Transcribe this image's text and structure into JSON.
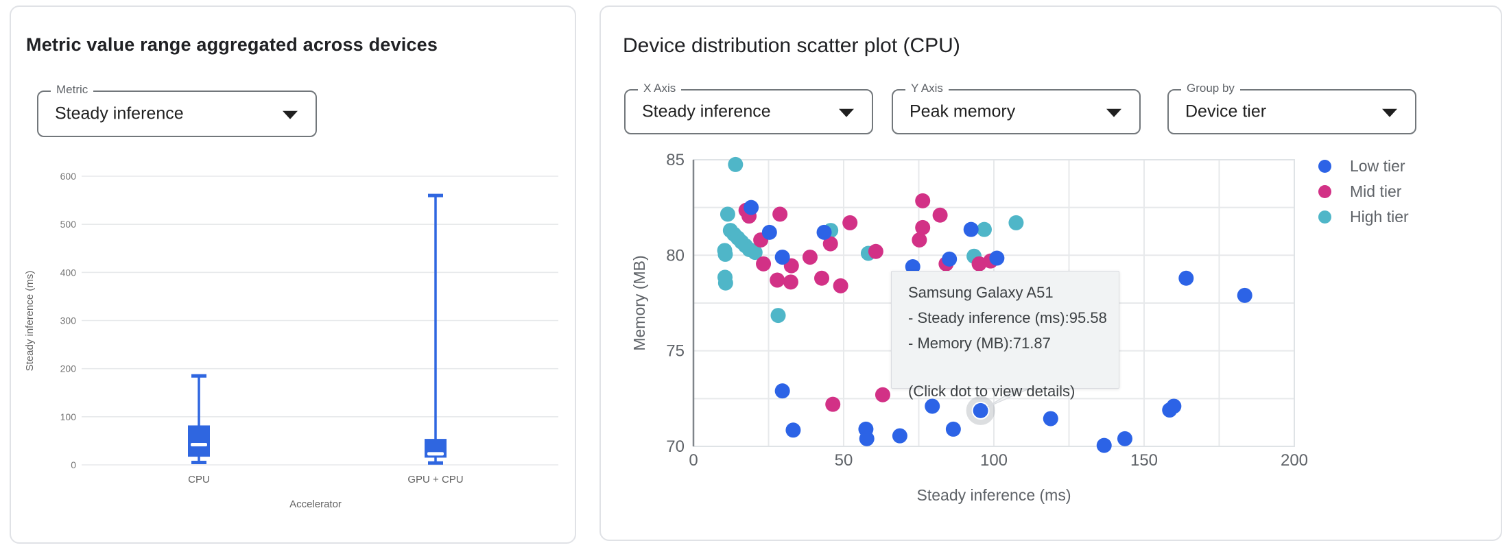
{
  "page": {
    "background": "#ffffff"
  },
  "colors": {
    "low_tier": "#2c63e6",
    "mid_tier": "#d23186",
    "high_tier": "#4fb6c8",
    "box_fill": "#2f66e0",
    "grid_line": "#e7e9eb",
    "axis_line": "#7f8489",
    "axis_text": "#5f6368",
    "small_tick_text": "#757575",
    "title_text": "#202124",
    "tooltip_bg": "#f1f3f4",
    "tooltip_border": "#dadce0"
  },
  "left_panel": {
    "title": "Metric value range aggregated across devices",
    "metric_dropdown": {
      "label": "Metric",
      "value": "Steady inference"
    }
  },
  "right_panel": {
    "title": "Device distribution scatter plot (CPU)",
    "dropdowns": {
      "x_axis": {
        "label": "X Axis",
        "value": "Steady inference"
      },
      "y_axis": {
        "label": "Y Axis",
        "value": "Peak memory"
      },
      "group_by": {
        "label": "Group by",
        "value": "Device tier"
      }
    },
    "legend": [
      {
        "label": "Low tier",
        "color": "#2c63e6"
      },
      {
        "label": "Mid tier",
        "color": "#d23186"
      },
      {
        "label": "High tier",
        "color": "#4fb6c8"
      }
    ],
    "tooltip": {
      "title": "Samsung Galaxy A51",
      "lines": [
        "- Steady inference (ms):95.58",
        "- Memory (MB):71.87"
      ],
      "hint": "(Click dot to view details)"
    }
  },
  "chart_data": [
    {
      "type": "boxplot",
      "title": "",
      "xlabel": "Accelerator",
      "ylabel": "Steady inference (ms)",
      "ylim": [
        0,
        600
      ],
      "yticks": [
        0,
        100,
        200,
        300,
        400,
        500,
        600
      ],
      "grid": "horizontal only",
      "categories": [
        "CPU",
        "GPU + CPU"
      ],
      "series": [
        {
          "category": "CPU",
          "min": 5,
          "q1": 17,
          "median": 42,
          "q3": 82,
          "max": 185
        },
        {
          "category": "GPU + CPU",
          "min": 4,
          "q1": 15,
          "median": 23,
          "q3": 54,
          "max": 560
        }
      ]
    },
    {
      "type": "scatter",
      "title": "",
      "xlabel": "Steady inference (ms)",
      "ylabel": "Memory (MB)",
      "xlim": [
        0,
        200
      ],
      "ylim": [
        70,
        85
      ],
      "xticks": [
        0,
        50,
        100,
        150,
        200
      ],
      "yticks": [
        70,
        75,
        80,
        85
      ],
      "grid": "major and minor (x every 25 ms, y every 2.5 MB)",
      "legend_position": "right",
      "series": [
        {
          "name": "High tier",
          "color": "#4fb6c8",
          "points": [
            [
              14,
              84.75
            ],
            [
              11.4,
              82.15
            ],
            [
              10.4,
              80.25
            ],
            [
              10.6,
              80.05
            ],
            [
              12.3,
              81.3
            ],
            [
              13.5,
              81.1
            ],
            [
              14.8,
              80.9
            ],
            [
              16,
              80.7
            ],
            [
              17.3,
              80.5
            ],
            [
              18.6,
              80.3
            ],
            [
              20.5,
              80.15
            ],
            [
              10.5,
              78.85
            ],
            [
              10.7,
              78.55
            ],
            [
              28.2,
              76.85
            ],
            [
              45.7,
              81.3
            ],
            [
              58.2,
              80.1
            ],
            [
              93.4,
              79.95
            ],
            [
              96.8,
              81.35
            ],
            [
              107.4,
              81.7
            ]
          ]
        },
        {
          "name": "Mid tier",
          "color": "#d23186",
          "points": [
            [
              17.5,
              82.35
            ],
            [
              18.5,
              82.05
            ],
            [
              28.8,
              82.15
            ],
            [
              22.4,
              80.8
            ],
            [
              23.3,
              79.55
            ],
            [
              27.9,
              78.7
            ],
            [
              32.4,
              78.6
            ],
            [
              32.6,
              79.45
            ],
            [
              38.8,
              79.9
            ],
            [
              42.7,
              78.8
            ],
            [
              45.6,
              80.6
            ],
            [
              49,
              78.4
            ],
            [
              52.1,
              81.7
            ],
            [
              60.7,
              80.2
            ],
            [
              75.2,
              80.8
            ],
            [
              76.3,
              82.85
            ],
            [
              76.3,
              81.45
            ],
            [
              82.1,
              82.1
            ],
            [
              84.1,
              79.55
            ],
            [
              95.1,
              79.55
            ],
            [
              98.9,
              79.7
            ],
            [
              46.4,
              72.2
            ],
            [
              63,
              72.7
            ]
          ]
        },
        {
          "name": "Low tier",
          "color": "#2c63e6",
          "points": [
            [
              19.2,
              82.5
            ],
            [
              25.3,
              81.2
            ],
            [
              29.6,
              79.9
            ],
            [
              43.5,
              81.2
            ],
            [
              73,
              79.4
            ],
            [
              85.2,
              79.8
            ],
            [
              92.4,
              81.35
            ],
            [
              101,
              79.85
            ],
            [
              164,
              78.8
            ],
            [
              183.5,
              77.9
            ],
            [
              29.6,
              72.9
            ],
            [
              33.2,
              70.85
            ],
            [
              57.4,
              70.9
            ],
            [
              57.7,
              70.4
            ],
            [
              68.7,
              70.55
            ],
            [
              79.5,
              72.1
            ],
            [
              86.5,
              70.9
            ],
            [
              118.9,
              71.45
            ],
            [
              136.7,
              70.05
            ],
            [
              143.6,
              70.4
            ],
            [
              158.5,
              71.9
            ],
            [
              159.9,
              72.1
            ]
          ]
        }
      ],
      "highlighted_point": {
        "series": "Low tier",
        "device": "Samsung Galaxy A51",
        "x": 95.58,
        "y": 71.87
      }
    }
  ]
}
